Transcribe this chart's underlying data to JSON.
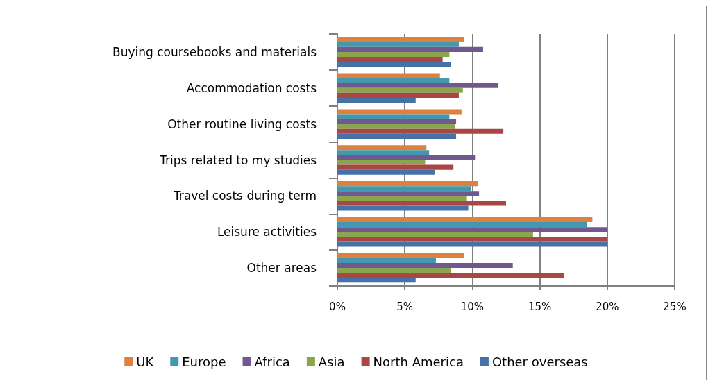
{
  "chart_data": {
    "type": "bar",
    "orientation": "horizontal",
    "categories": [
      "Buying coursebooks and materials",
      "Accommodation costs",
      "Other routine living costs",
      "Trips related to my studies",
      "Travel costs during term",
      "Leisure activities",
      "Other areas"
    ],
    "series": [
      {
        "name": "UK",
        "color": "#dd8040",
        "values": [
          9.4,
          7.6,
          9.2,
          6.6,
          10.4,
          18.9,
          9.4
        ]
      },
      {
        "name": "Europe",
        "color": "#4298ae",
        "values": [
          9.0,
          8.3,
          8.3,
          6.8,
          9.9,
          18.5,
          7.3
        ]
      },
      {
        "name": "Africa",
        "color": "#71588f",
        "values": [
          10.8,
          11.9,
          8.8,
          10.2,
          10.5,
          20.0,
          13.0
        ]
      },
      {
        "name": "Asia",
        "color": "#89a54e",
        "values": [
          8.3,
          9.3,
          8.7,
          6.5,
          9.6,
          14.5,
          8.4
        ]
      },
      {
        "name": "North America",
        "color": "#aa4643",
        "values": [
          7.8,
          9.0,
          12.3,
          8.6,
          12.5,
          20.0,
          16.8
        ]
      },
      {
        "name": "Other overseas",
        "color": "#4572a7",
        "values": [
          8.4,
          5.8,
          8.8,
          7.2,
          9.7,
          20.0,
          5.8
        ]
      }
    ],
    "xlim": [
      0,
      25
    ],
    "xticks": [
      {
        "value": 0,
        "label": "0%"
      },
      {
        "value": 5,
        "label": "5%"
      },
      {
        "value": 10,
        "label": "10%"
      },
      {
        "value": 15,
        "label": "15%"
      },
      {
        "value": 20,
        "label": "20%"
      },
      {
        "value": 25,
        "label": "25%"
      }
    ],
    "grid": "x",
    "legend": "bottom"
  }
}
